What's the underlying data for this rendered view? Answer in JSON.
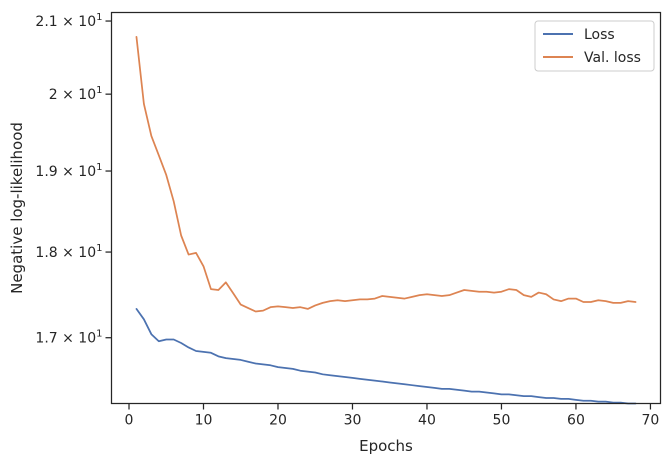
{
  "chart_data": {
    "type": "line",
    "title": "",
    "xlabel": "Epochs",
    "ylabel": "Negative log-likelihood",
    "xlim": [
      -2.35,
      71.35
    ],
    "ylim": [
      16.27,
      21.12
    ],
    "yscale": "log",
    "grid": false,
    "legend_position": "top-right",
    "xticks": [
      0,
      10,
      20,
      30,
      40,
      50,
      60,
      70
    ],
    "xtick_labels": [
      "0",
      "10",
      "20",
      "30",
      "40",
      "50",
      "60",
      "70"
    ],
    "yticks": [
      {
        "value": 17,
        "mantissa": "1.7",
        "base": "10",
        "exp": "1"
      },
      {
        "value": 18,
        "mantissa": "1.8",
        "base": "10",
        "exp": "1"
      },
      {
        "value": 19,
        "mantissa": "1.9",
        "base": "10",
        "exp": "1"
      },
      {
        "value": 20,
        "mantissa": "2",
        "base": "10",
        "exp": "1"
      },
      {
        "value": 21,
        "mantissa": "2.1",
        "base": "10",
        "exp": "1"
      }
    ],
    "tick_times": "×",
    "x": [
      1,
      2,
      3,
      4,
      5,
      6,
      7,
      8,
      9,
      10,
      11,
      12,
      13,
      14,
      15,
      16,
      17,
      18,
      19,
      20,
      21,
      22,
      23,
      24,
      25,
      26,
      27,
      28,
      29,
      30,
      31,
      32,
      33,
      34,
      35,
      36,
      37,
      38,
      39,
      40,
      41,
      42,
      43,
      44,
      45,
      46,
      47,
      48,
      49,
      50,
      51,
      52,
      53,
      54,
      55,
      56,
      57,
      58,
      59,
      60,
      61,
      62,
      63,
      64,
      65,
      66,
      67,
      68
    ],
    "series": [
      {
        "name": "Loss",
        "color": "#4c72b0",
        "values": [
          17.33,
          17.21,
          17.04,
          16.96,
          16.98,
          16.98,
          16.94,
          16.89,
          16.85,
          16.84,
          16.83,
          16.79,
          16.77,
          16.76,
          16.75,
          16.73,
          16.71,
          16.7,
          16.69,
          16.67,
          16.66,
          16.65,
          16.63,
          16.62,
          16.61,
          16.59,
          16.58,
          16.57,
          16.56,
          16.55,
          16.54,
          16.53,
          16.52,
          16.51,
          16.5,
          16.49,
          16.48,
          16.47,
          16.46,
          16.45,
          16.44,
          16.43,
          16.43,
          16.42,
          16.41,
          16.4,
          16.4,
          16.39,
          16.38,
          16.37,
          16.37,
          16.36,
          16.35,
          16.35,
          16.34,
          16.33,
          16.33,
          16.32,
          16.32,
          16.31,
          16.3,
          16.3,
          16.29,
          16.29,
          16.28,
          16.28,
          16.27,
          16.27
        ]
      },
      {
        "name": "Val. loss",
        "color": "#dd8452",
        "values": [
          20.78,
          19.87,
          19.45,
          19.2,
          18.95,
          18.62,
          18.2,
          17.97,
          17.99,
          17.83,
          17.56,
          17.55,
          17.64,
          17.51,
          17.38,
          17.34,
          17.3,
          17.31,
          17.35,
          17.36,
          17.35,
          17.34,
          17.35,
          17.33,
          17.37,
          17.4,
          17.42,
          17.43,
          17.42,
          17.43,
          17.44,
          17.44,
          17.45,
          17.48,
          17.47,
          17.46,
          17.45,
          17.47,
          17.49,
          17.5,
          17.49,
          17.48,
          17.49,
          17.52,
          17.55,
          17.54,
          17.53,
          17.53,
          17.52,
          17.53,
          17.56,
          17.55,
          17.49,
          17.47,
          17.52,
          17.5,
          17.44,
          17.42,
          17.45,
          17.45,
          17.41,
          17.41,
          17.43,
          17.42,
          17.4,
          17.4,
          17.42,
          17.41
        ]
      }
    ]
  }
}
